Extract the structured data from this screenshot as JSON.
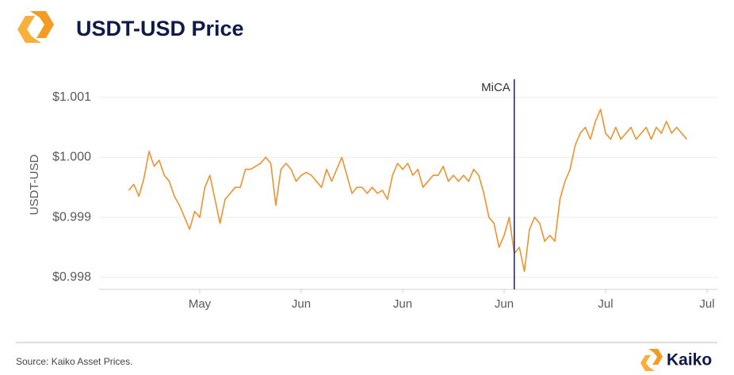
{
  "chart_data": {
    "type": "line",
    "title": "USDT-USD Price",
    "ylabel": "USDT-USD",
    "source": "Source: Kaiko Asset Prices.",
    "brand": "Kaiko",
    "annotation": {
      "label": "MiCA",
      "category_index": 76
    },
    "categories": [
      null,
      null,
      null,
      null,
      null,
      null,
      null,
      null,
      null,
      null,
      null,
      null,
      null,
      null,
      "May",
      null,
      null,
      null,
      null,
      null,
      null,
      null,
      null,
      null,
      null,
      null,
      null,
      null,
      null,
      null,
      null,
      null,
      null,
      null,
      "Jun",
      null,
      null,
      null,
      null,
      null,
      null,
      null,
      null,
      null,
      null,
      null,
      null,
      null,
      null,
      null,
      null,
      null,
      null,
      null,
      "Jun",
      null,
      null,
      null,
      null,
      null,
      null,
      null,
      null,
      null,
      null,
      null,
      null,
      null,
      null,
      null,
      null,
      null,
      null,
      null,
      "Jun",
      null,
      null,
      null,
      null,
      null,
      null,
      null,
      null,
      null,
      null,
      null,
      null,
      null,
      null,
      null,
      null,
      null,
      null,
      null,
      "Jul",
      null,
      null,
      null,
      null,
      null,
      null,
      null,
      null,
      null,
      null,
      null,
      null,
      null,
      null,
      null,
      null,
      null,
      null,
      null,
      "Jul"
    ],
    "series": [
      {
        "name": "USDT-USD",
        "color": "#f0922f",
        "values": [
          0.99945,
          0.99955,
          0.99935,
          0.99965,
          1.0001,
          0.99985,
          0.99995,
          0.9997,
          0.9996,
          0.99935,
          0.9992,
          0.999,
          0.9988,
          0.9991,
          0.999,
          0.9995,
          0.9997,
          0.9993,
          0.9989,
          0.9993,
          0.9994,
          0.9995,
          0.9995,
          0.9998,
          0.9998,
          0.99985,
          0.9999,
          1.0,
          0.9999,
          0.9992,
          0.9998,
          0.9999,
          0.9998,
          0.9996,
          0.9997,
          0.99975,
          0.9997,
          0.9996,
          0.9995,
          0.9998,
          0.9996,
          0.9998,
          1.0,
          0.9997,
          0.9994,
          0.9995,
          0.9995,
          0.9994,
          0.9995,
          0.9994,
          0.99945,
          0.9993,
          0.9997,
          0.9999,
          0.9998,
          0.9999,
          0.9997,
          0.9998,
          0.9995,
          0.9996,
          0.9997,
          0.9997,
          0.99985,
          0.9996,
          0.9997,
          0.9996,
          0.9997,
          0.9996,
          0.9998,
          0.9997,
          0.9994,
          0.999,
          0.9989,
          0.9985,
          0.9987,
          0.999,
          0.9984,
          0.9985,
          0.9981,
          0.9988,
          0.999,
          0.9989,
          0.9986,
          0.9987,
          0.9986,
          0.9993,
          0.9996,
          0.9998,
          1.0002,
          1.0004,
          1.0005,
          1.0003,
          1.0006,
          1.0008,
          1.0004,
          1.0003,
          1.0005,
          1.0003,
          1.0004,
          1.0005,
          1.0003,
          1.0004,
          1.0005,
          1.0003,
          1.0005,
          1.0004,
          1.0006,
          1.0004,
          1.0005,
          1.0004,
          1.0003,
          null,
          null,
          null,
          null
        ]
      }
    ],
    "ylim": [
      0.9978,
      1.0013
    ],
    "yticks": [
      {
        "value": 0.998,
        "label": "$0.998"
      },
      {
        "value": 0.999,
        "label": "$0.999"
      },
      {
        "value": 1.0,
        "label": "$1.000"
      },
      {
        "value": 1.001,
        "label": "$1.001"
      }
    ],
    "grid": true
  }
}
